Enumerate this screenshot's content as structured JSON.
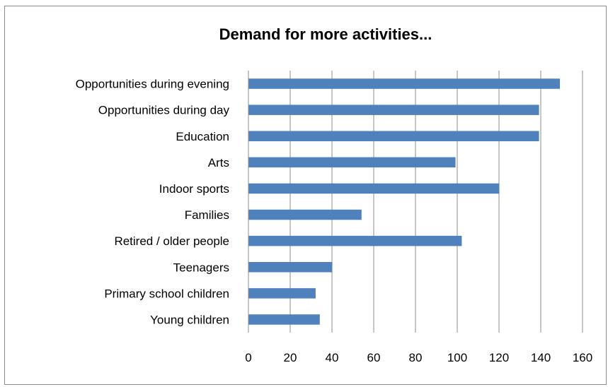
{
  "chart_data": {
    "type": "bar",
    "orientation": "horizontal",
    "title": "Demand for more activities...",
    "xlabel": "",
    "ylabel": "",
    "categories": [
      "Opportunities during evening",
      "Opportunities during day",
      "Education",
      "Arts",
      "Indoor sports",
      "Families",
      "Retired / older people",
      "Teenagers",
      "Primary school children",
      "Young children"
    ],
    "values": [
      149,
      139,
      139,
      99,
      120,
      54,
      102,
      40,
      32,
      34
    ],
    "xlim": [
      0,
      160
    ],
    "xticks": [
      "0",
      "20",
      "40",
      "60",
      "80",
      "100",
      "120",
      "140",
      "160"
    ],
    "grid": "vertical",
    "legend": "none",
    "bar_color": "#4f81bd",
    "grid_color": "#8c8c8c"
  }
}
